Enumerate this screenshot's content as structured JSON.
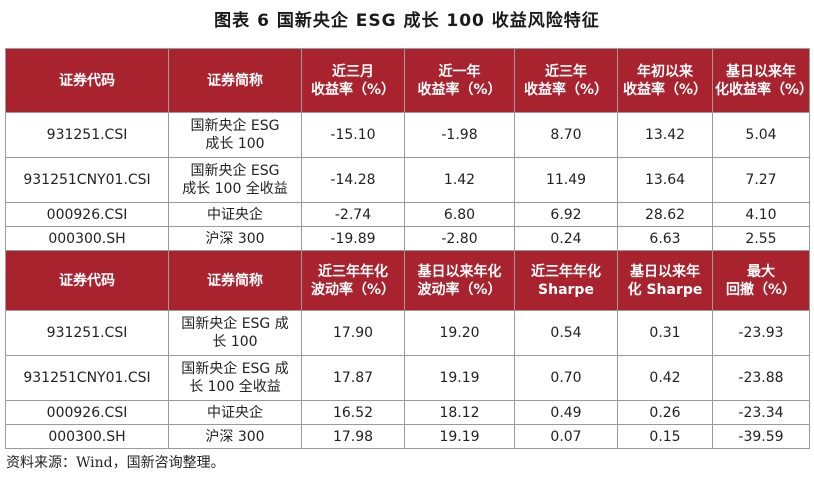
{
  "title": "图表 6  国新央企 ESG 成长 100 收益风险特征",
  "table1": {
    "headers": [
      "证券代码",
      "证券简称",
      "近三月\n收益率（%）",
      "近一年\n收益率（%）",
      "近三年\n收益率（%）",
      "年初以来\n收益率（%）",
      "基日以来年\n化收益率（%）"
    ],
    "rows": [
      [
        "931251.CSI",
        "国新央企 ESG\n成长 100",
        "-15.10",
        "-1.98",
        "8.70",
        "13.42",
        "5.04"
      ],
      [
        "931251CNY01.CSI",
        "国新央企 ESG\n成长 100 全收益",
        "-14.28",
        "1.42",
        "11.49",
        "13.64",
        "7.27"
      ],
      [
        "000926.CSI",
        "中证央企",
        "-2.74",
        "6.80",
        "6.92",
        "28.62",
        "4.10"
      ],
      [
        "000300.SH",
        "沪深 300",
        "-19.89",
        "-2.80",
        "0.24",
        "6.63",
        "2.55"
      ]
    ]
  },
  "table2": {
    "headers": [
      "证券代码",
      "证券简称",
      "近三年年化\n波动率（%）",
      "基日以来年化\n波动率（%）",
      "近三年年化\nSharpe",
      "基日以来年\n化 Sharpe",
      "最大\n回撤（%）"
    ],
    "rows": [
      [
        "931251.CSI",
        "国新央企 ESG 成\n长 100",
        "17.90",
        "19.20",
        "0.54",
        "0.31",
        "-23.93"
      ],
      [
        "931251CNY01.CSI",
        "国新央企 ESG 成\n长 100 全收益",
        "17.87",
        "19.19",
        "0.70",
        "0.42",
        "-23.88"
      ],
      [
        "000926.CSI",
        "中证央企",
        "16.52",
        "18.12",
        "0.49",
        "0.26",
        "-23.34"
      ],
      [
        "000300.SH",
        "沪深 300",
        "17.98",
        "19.19",
        "0.07",
        "0.15",
        "-39.59"
      ]
    ]
  },
  "source": "资料来源：Wind，国新咨询整理。"
}
